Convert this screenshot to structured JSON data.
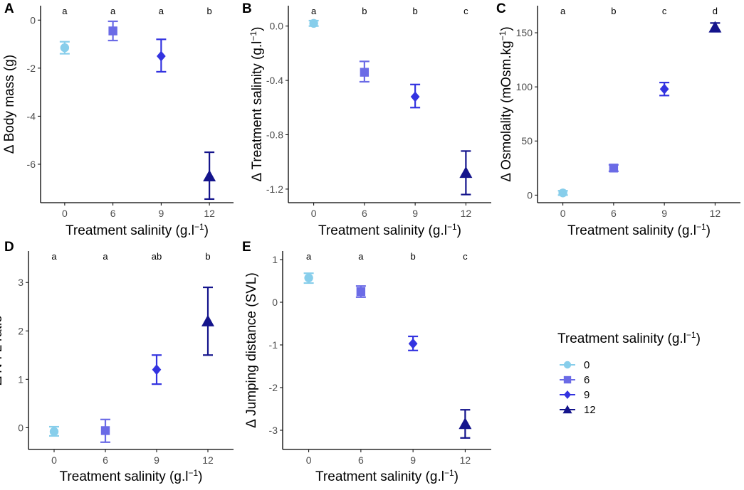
{
  "colors": {
    "0": "#87ceeb",
    "6": "#6b6be6",
    "9": "#3333e0",
    "12": "#14148c"
  },
  "shapes": {
    "0": "circle",
    "6": "square",
    "9": "diamond",
    "12": "triangle"
  },
  "chart_data": [
    {
      "type": "scatter",
      "panel": "A",
      "ylabel": "Δ Body mass (g)",
      "xlabel": "Treatment salinity (g.l",
      "xlabel_sup": "−1",
      "xlabel_end": ")",
      "categories": [
        "0",
        "6",
        "9",
        "12"
      ],
      "ylim": [
        -7.6,
        0.6
      ],
      "yticks": [
        0,
        -2,
        -4,
        -6
      ],
      "ytick_labels": [
        "0",
        "-2",
        "-4",
        "-6"
      ],
      "means": [
        -1.15,
        -0.45,
        -1.5,
        -6.5
      ],
      "lower": [
        -1.4,
        -0.85,
        -2.15,
        -7.45
      ],
      "upper": [
        -0.9,
        -0.05,
        -0.8,
        -5.5
      ],
      "letters": [
        "a",
        "a",
        "a",
        "b"
      ]
    },
    {
      "type": "scatter",
      "panel": "B",
      "ylabel": "Δ Treatment salinity (g.l",
      "ylabel_sup": "−1",
      "ylabel_end": ")",
      "xlabel": "Treatment salinity (g.l",
      "xlabel_sup": "−1",
      "xlabel_end": ")",
      "categories": [
        "0",
        "6",
        "9",
        "12"
      ],
      "ylim": [
        -1.3,
        0.15
      ],
      "yticks": [
        0.0,
        -0.4,
        -0.8,
        -1.2
      ],
      "ytick_labels": [
        "0.0",
        "-0.4",
        "-0.8",
        "-1.2"
      ],
      "means": [
        0.02,
        -0.34,
        -0.52,
        -1.08
      ],
      "lower": [
        0.0,
        -0.41,
        -0.6,
        -1.24
      ],
      "upper": [
        0.04,
        -0.26,
        -0.43,
        -0.92
      ],
      "letters": [
        "a",
        "b",
        "b",
        "c"
      ]
    },
    {
      "type": "scatter",
      "panel": "C",
      "ylabel": "Δ Osmolality (mOsm.kg",
      "ylabel_sup": "−1",
      "ylabel_end": ")",
      "xlabel": "Treatment salinity (g.l",
      "xlabel_sup": "−1",
      "xlabel_end": ")",
      "categories": [
        "0",
        "6",
        "9",
        "12"
      ],
      "ylim": [
        -7,
        175
      ],
      "yticks": [
        0,
        50,
        100,
        150
      ],
      "ytick_labels": [
        "0",
        "50",
        "100",
        "150"
      ],
      "means": [
        2,
        25,
        98,
        155
      ],
      "lower": [
        0,
        22,
        92,
        151
      ],
      "upper": [
        4,
        28,
        104,
        159
      ],
      "letters": [
        "a",
        "b",
        "c",
        "d"
      ]
    },
    {
      "type": "scatter",
      "panel": "D",
      "ylabel": "Δ N : L ratio",
      "xlabel": "Treatment salinity (g.l",
      "xlabel_sup": "−1",
      "xlabel_end": ")",
      "categories": [
        "0",
        "6",
        "9",
        "12"
      ],
      "ylim": [
        -0.45,
        3.65
      ],
      "yticks": [
        0,
        1,
        2,
        3
      ],
      "ytick_labels": [
        "0",
        "1",
        "2",
        "3"
      ],
      "means": [
        -0.08,
        -0.06,
        1.2,
        2.2
      ],
      "lower": [
        -0.17,
        -0.3,
        0.9,
        1.5
      ],
      "upper": [
        0.02,
        0.17,
        1.5,
        2.9
      ],
      "letters": [
        "a",
        "a",
        "ab",
        "b"
      ]
    },
    {
      "type": "scatter",
      "panel": "E",
      "ylabel": "Δ Jumping distance (SVL)",
      "xlabel": "Treatment salinity (g.l",
      "xlabel_sup": "−1",
      "xlabel_end": ")",
      "categories": [
        "0",
        "6",
        "9",
        "12"
      ],
      "ylim": [
        -3.45,
        1.2
      ],
      "yticks": [
        1,
        0,
        -1,
        -2,
        -3
      ],
      "ytick_labels": [
        "1",
        "0",
        "-1",
        "-2",
        "-3"
      ],
      "means": [
        0.57,
        0.25,
        -0.97,
        -2.85
      ],
      "lower": [
        0.45,
        0.12,
        -1.13,
        -3.18
      ],
      "upper": [
        0.68,
        0.38,
        -0.8,
        -2.52
      ],
      "letters": [
        "a",
        "a",
        "b",
        "c"
      ]
    }
  ],
  "legend": {
    "title": "Treatment salinity (g.l",
    "title_sup": "−1",
    "title_end": ")",
    "items": [
      {
        "label": "0",
        "key": "0"
      },
      {
        "label": "6",
        "key": "6"
      },
      {
        "label": "9",
        "key": "9"
      },
      {
        "label": "12",
        "key": "12"
      }
    ]
  }
}
